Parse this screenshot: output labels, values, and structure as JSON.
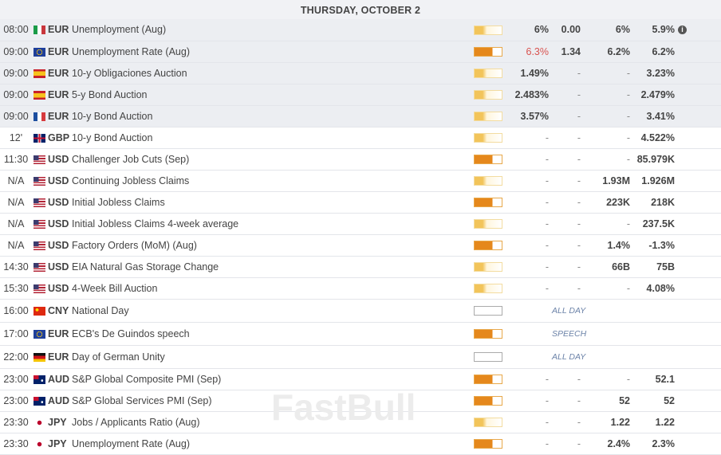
{
  "day_header": "THURSDAY, OCTOBER 2",
  "watermark": "FastBull",
  "colors": {
    "low": "#f2c45a",
    "medium": "#e5881c",
    "actual_worse": "#d9534f",
    "tag": "#6b82a8"
  },
  "rows": [
    {
      "time": "08:00",
      "flag": "italy",
      "currency": "EUR",
      "event": "Unemployment (Aug)",
      "importance": "low",
      "actual": "6%",
      "col2": "0.00",
      "forecast": "6%",
      "previous": "5.9%",
      "info": true,
      "past": true
    },
    {
      "time": "09:00",
      "flag": "eu",
      "currency": "EUR",
      "event": "Unemployment Rate (Aug)",
      "importance": "medium",
      "actual": "6.3%",
      "actual_red": true,
      "col2": "1.34",
      "forecast": "6.2%",
      "previous": "6.2%",
      "past": true
    },
    {
      "time": "09:00",
      "flag": "spain",
      "currency": "EUR",
      "event": "10-y Obligaciones Auction",
      "importance": "low",
      "actual": "1.49%",
      "col2": "-",
      "forecast": "-",
      "previous": "3.23%",
      "past": true
    },
    {
      "time": "09:00",
      "flag": "spain",
      "currency": "EUR",
      "event": "5-y Bond Auction",
      "importance": "low",
      "actual": "2.483%",
      "col2": "-",
      "forecast": "-",
      "previous": "2.479%",
      "past": true
    },
    {
      "time": "09:00",
      "flag": "france",
      "currency": "EUR",
      "event": "10-y Bond Auction",
      "importance": "low",
      "actual": "3.57%",
      "col2": "-",
      "forecast": "-",
      "previous": "3.41%",
      "past": true
    },
    {
      "time": "12'",
      "flag": "uk",
      "currency": "GBP",
      "event": "10-y Bond Auction",
      "importance": "low",
      "actual": "-",
      "col2": "-",
      "forecast": "-",
      "previous": "4.522%"
    },
    {
      "time": "11:30",
      "flag": "us",
      "currency": "USD",
      "event": "Challenger Job Cuts (Sep)",
      "importance": "medium",
      "actual": "-",
      "col2": "-",
      "forecast": "-",
      "previous": "85.979K"
    },
    {
      "time": "N/A",
      "flag": "us",
      "currency": "USD",
      "event": "Continuing Jobless Claims",
      "importance": "low",
      "actual": "-",
      "col2": "-",
      "forecast": "1.93M",
      "previous": "1.926M"
    },
    {
      "time": "N/A",
      "flag": "us",
      "currency": "USD",
      "event": "Initial Jobless Claims",
      "importance": "medium",
      "actual": "-",
      "col2": "-",
      "forecast": "223K",
      "previous": "218K"
    },
    {
      "time": "N/A",
      "flag": "us",
      "currency": "USD",
      "event": "Initial Jobless Claims 4-week average",
      "importance": "low",
      "actual": "-",
      "col2": "-",
      "forecast": "-",
      "previous": "237.5K"
    },
    {
      "time": "N/A",
      "flag": "us",
      "currency": "USD",
      "event": "Factory Orders (MoM) (Aug)",
      "importance": "medium",
      "actual": "-",
      "col2": "-",
      "forecast": "1.4%",
      "previous": "-1.3%"
    },
    {
      "time": "14:30",
      "flag": "us",
      "currency": "USD",
      "event": "EIA Natural Gas Storage Change",
      "importance": "low",
      "actual": "-",
      "col2": "-",
      "forecast": "66B",
      "previous": "75B"
    },
    {
      "time": "15:30",
      "flag": "us",
      "currency": "USD",
      "event": "4-Week Bill Auction",
      "importance": "low",
      "actual": "-",
      "col2": "-",
      "forecast": "-",
      "previous": "4.08%"
    },
    {
      "time": "16:00",
      "flag": "china",
      "currency": "CNY",
      "event": "National Day",
      "importance": "none",
      "tag": "ALL DAY"
    },
    {
      "time": "17:00",
      "flag": "eu",
      "currency": "EUR",
      "event": "ECB's De Guindos speech",
      "importance": "medium",
      "tag": "SPEECH"
    },
    {
      "time": "22:00",
      "flag": "germany",
      "currency": "EUR",
      "event": "Day of German Unity",
      "importance": "none",
      "tag": "ALL DAY"
    },
    {
      "time": "23:00",
      "flag": "australia",
      "currency": "AUD",
      "event": "S&P Global Composite PMI (Sep)",
      "importance": "medium",
      "actual": "-",
      "col2": "-",
      "forecast": "-",
      "previous": "52.1"
    },
    {
      "time": "23:00",
      "flag": "australia",
      "currency": "AUD",
      "event": "S&P Global Services PMI (Sep)",
      "importance": "medium",
      "actual": "-",
      "col2": "-",
      "forecast": "52",
      "previous": "52"
    },
    {
      "time": "23:30",
      "flag": "japan",
      "currency": "JPY",
      "event": "Jobs / Applicants Ratio (Aug)",
      "importance": "low",
      "actual": "-",
      "col2": "-",
      "forecast": "1.22",
      "previous": "1.22"
    },
    {
      "time": "23:30",
      "flag": "japan",
      "currency": "JPY",
      "event": "Unemployment Rate (Aug)",
      "importance": "medium",
      "actual": "-",
      "col2": "-",
      "forecast": "2.4%",
      "previous": "2.3%"
    }
  ]
}
